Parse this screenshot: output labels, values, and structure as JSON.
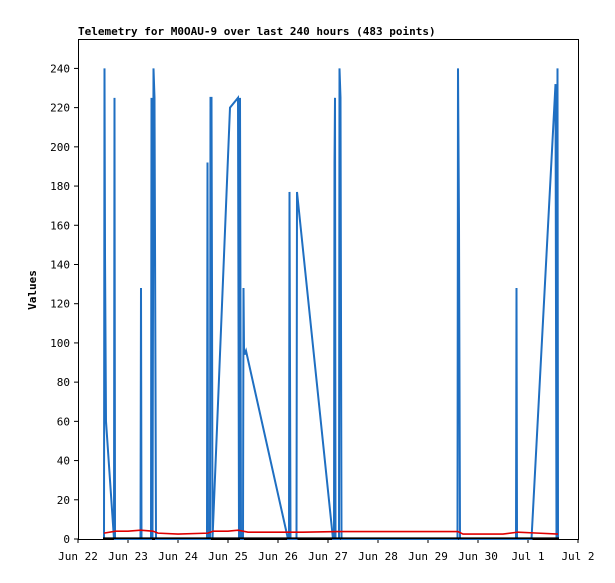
{
  "chart_data": {
    "type": "line",
    "title": "Telemetry for M0OAU-9 over last 240 hours (483 points)",
    "ylabel": "Values",
    "xlabel": "",
    "ylim": [
      0,
      255
    ],
    "y_ticks": [
      0,
      20,
      40,
      60,
      80,
      100,
      120,
      140,
      160,
      180,
      200,
      220,
      240
    ],
    "x_ticks": [
      {
        "label": "Jun 22",
        "day": 22
      },
      {
        "label": "Jun 23",
        "day": 23
      },
      {
        "label": "Jun 24",
        "day": 24
      },
      {
        "label": "Jun 25",
        "day": 25
      },
      {
        "label": "Jun 26",
        "day": 26
      },
      {
        "label": "Jun 27",
        "day": 27
      },
      {
        "label": "Jun 28",
        "day": 28
      },
      {
        "label": "Jun 29",
        "day": 29
      },
      {
        "label": "Jun 30",
        "day": 30
      },
      {
        "label": "Jul 1",
        "day": 31
      },
      {
        "label": "Jul 2",
        "day": 32
      }
    ],
    "xlim": [
      22,
      32
    ],
    "grid": false,
    "colors": {
      "blue": "#1f6fc2",
      "red": "#e00000",
      "black": "#000000"
    },
    "series": [
      {
        "color": "#1f6fc2",
        "points": [
          [
            22.52,
            0
          ],
          [
            22.53,
            240
          ],
          [
            22.54,
            145
          ],
          [
            22.56,
            60
          ],
          [
            22.72,
            0
          ],
          [
            22.73,
            225
          ],
          [
            22.74,
            0
          ],
          [
            23.25,
            0
          ],
          [
            23.26,
            128
          ],
          [
            23.27,
            0
          ],
          [
            23.46,
            0
          ],
          [
            23.47,
            225
          ],
          [
            23.48,
            120
          ],
          [
            23.49,
            0
          ],
          [
            23.51,
            240
          ],
          [
            23.53,
            225
          ],
          [
            23.55,
            80
          ],
          [
            23.56,
            0
          ],
          [
            24.58,
            0
          ],
          [
            24.59,
            192
          ],
          [
            24.6,
            0
          ],
          [
            24.64,
            0
          ],
          [
            24.65,
            225
          ],
          [
            24.67,
            225
          ],
          [
            24.68,
            128
          ],
          [
            24.69,
            0
          ],
          [
            25.04,
            220
          ],
          [
            25.2,
            225
          ],
          [
            25.22,
            0
          ],
          [
            25.24,
            225
          ],
          [
            25.26,
            0
          ],
          [
            25.3,
            0
          ],
          [
            25.31,
            128
          ],
          [
            25.32,
            97
          ],
          [
            25.33,
            94
          ],
          [
            25.36,
            96
          ],
          [
            26.2,
            0
          ],
          [
            26.22,
            0
          ],
          [
            26.23,
            177
          ],
          [
            26.25,
            0
          ],
          [
            26.37,
            0
          ],
          [
            26.38,
            177
          ],
          [
            27.1,
            0
          ],
          [
            27.12,
            0
          ],
          [
            27.13,
            192
          ],
          [
            27.14,
            225
          ],
          [
            27.15,
            0
          ],
          [
            27.22,
            0
          ],
          [
            27.23,
            240
          ],
          [
            27.25,
            225
          ],
          [
            27.27,
            0
          ],
          [
            29.59,
            0
          ],
          [
            29.6,
            240
          ],
          [
            29.62,
            160
          ],
          [
            29.64,
            0
          ],
          [
            30.76,
            0
          ],
          [
            30.77,
            128
          ],
          [
            30.78,
            0
          ],
          [
            31.07,
            0
          ],
          [
            31.55,
            232
          ],
          [
            31.57,
            0
          ],
          [
            31.59,
            240
          ],
          [
            31.6,
            0
          ]
        ]
      },
      {
        "color": "#e00000",
        "points": [
          [
            22.52,
            3
          ],
          [
            22.75,
            4
          ],
          [
            23.0,
            4
          ],
          [
            23.25,
            4.5
          ],
          [
            23.5,
            4
          ],
          [
            23.6,
            3
          ],
          [
            24.0,
            2.5
          ],
          [
            24.6,
            3
          ],
          [
            24.7,
            4
          ],
          [
            25.0,
            4
          ],
          [
            25.2,
            4.5
          ],
          [
            25.4,
            3.5
          ],
          [
            26.0,
            3.5
          ],
          [
            26.5,
            3.5
          ],
          [
            27.2,
            3.8
          ],
          [
            28.0,
            3.8
          ],
          [
            29.6,
            3.8
          ],
          [
            29.7,
            2.5
          ],
          [
            30.5,
            2.5
          ],
          [
            30.8,
            3.5
          ],
          [
            31.2,
            3
          ],
          [
            31.6,
            2.5
          ]
        ]
      },
      {
        "color": "#000000",
        "points": [
          [
            22.5,
            0.4
          ],
          [
            31.62,
            0.4
          ]
        ]
      }
    ]
  }
}
